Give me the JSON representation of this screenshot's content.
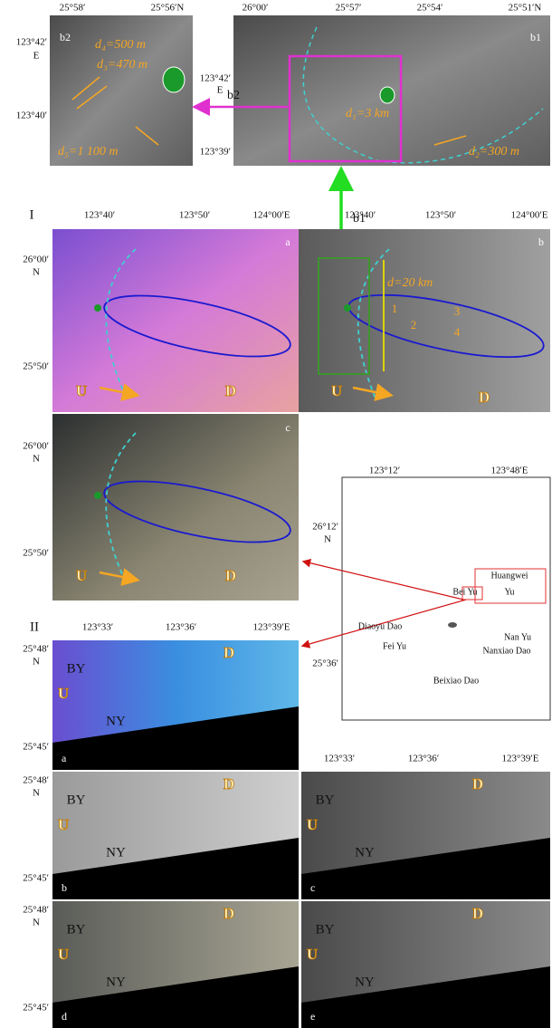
{
  "panel_b2": {
    "label": "b2",
    "top_ticks": [
      "25°58′",
      "25°56′N"
    ],
    "left_ticks": [
      "123°42′",
      "E",
      "123°40′"
    ],
    "annotations": [
      "d₄=500 m",
      "d₃=470 m",
      "d₅=1 100 m"
    ]
  },
  "panel_b1": {
    "label": "b1",
    "top_ticks": [
      "26°00′",
      "25°57′",
      "25°54′",
      "25°51′N"
    ],
    "left_ticks": [
      "123°42′",
      "E",
      "123°39′"
    ],
    "annotations": [
      "d₁=3 km",
      "d₂=300 m"
    ]
  },
  "arrow_labels": [
    "b2",
    "b1"
  ],
  "section_I": {
    "label": "I",
    "top_ticks_left": [
      "123°40′",
      "123°50′",
      "124°00′E"
    ],
    "top_ticks_right": [
      "123°40′",
      "123°50′",
      "124°00′E"
    ],
    "panels": [
      {
        "label": "a",
        "left_ticks": [
          "26°00′",
          "N",
          "25°50′"
        ],
        "annotations": [
          "U",
          "D"
        ]
      },
      {
        "label": "b",
        "annotations": [
          "d=20 km",
          "1",
          "2",
          "3",
          "4",
          "U",
          "D"
        ]
      },
      {
        "label": "c",
        "left_ticks": [
          "26°00′",
          "N",
          "25°50′"
        ],
        "annotations": [
          "U",
          "D"
        ]
      }
    ]
  },
  "map": {
    "top_ticks": [
      "123°12′",
      "123°48′E"
    ],
    "left_ticks": [
      "26°12′",
      "N",
      "25°36′"
    ],
    "places": [
      "Huangwei",
      "Yu",
      "Bei Yu",
      "Diaoyu Dao",
      "Nan Yu",
      "Fei Yu",
      "Nanxiao Dao",
      "Beixiao Dao"
    ]
  },
  "section_II": {
    "label": "II",
    "top_ticks_left": [
      "123°33′",
      "123°36′",
      "123°39′E"
    ],
    "top_ticks_right": [
      "123°33′",
      "123°36′",
      "123°39′E"
    ],
    "panels": [
      {
        "label": "a",
        "left_ticks": [
          "25°48′",
          "N",
          "25°45′"
        ],
        "annotations": [
          "D",
          "BY",
          "U",
          "NY"
        ]
      },
      {
        "label": "b",
        "left_ticks": [
          "25°48′",
          "N",
          "25°45′"
        ],
        "annotations": [
          "D",
          "BY",
          "U",
          "NY"
        ]
      },
      {
        "label": "c",
        "annotations": [
          "D",
          "BY",
          "U",
          "NY"
        ]
      },
      {
        "label": "d",
        "left_ticks": [
          "25°48′",
          "N",
          "25°45′"
        ],
        "annotations": [
          "D",
          "BY",
          "U",
          "NY"
        ]
      },
      {
        "label": "e",
        "annotations": [
          "D",
          "BY",
          "U",
          "NY"
        ]
      }
    ]
  }
}
